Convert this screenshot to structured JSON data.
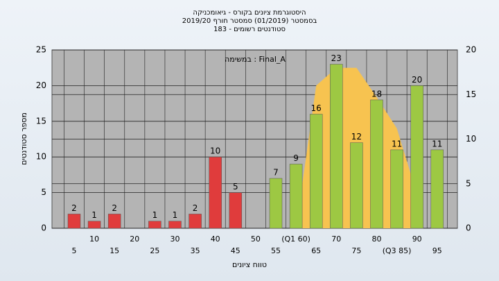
{
  "chart_data": {
    "type": "bar",
    "title": "היסטוגרמת ציונים בקורס - גיאומכניקה",
    "subtitle": "בסמסטר (01/2019) סמסטר חורף 2019/20",
    "subtitle2": "סטודנטים רשומים - 183",
    "annotation": "במשימה : Final_A",
    "ylabel": "מספר סטודנטים",
    "xlabel": "טווח ציונים",
    "categories": [
      "5",
      "10",
      "15",
      "20",
      "25",
      "30",
      "35",
      "40",
      "45",
      "50",
      "55",
      "(Q1 60)",
      "65",
      "70",
      "75",
      "80",
      "(Q3 85)",
      "90",
      "95"
    ],
    "values": [
      2,
      1,
      2,
      0,
      1,
      1,
      2,
      10,
      5,
      0,
      7,
      9,
      16,
      23,
      12,
      18,
      11,
      20,
      11
    ],
    "colors": [
      "#e03c3c",
      "#e03c3c",
      "#e03c3c",
      "#e03c3c",
      "#e03c3c",
      "#e03c3c",
      "#e03c3c",
      "#e03c3c",
      "#e03c3c",
      "#e03c3c",
      "#9dc843",
      "#9dc843",
      "#9dc843",
      "#9dc843",
      "#9dc843",
      "#9dc843",
      "#9dc843",
      "#9dc843",
      "#9dc843"
    ],
    "curve": {
      "axis": "y2",
      "color": "#f7c350",
      "values": [
        null,
        null,
        null,
        null,
        null,
        null,
        null,
        null,
        null,
        null,
        null,
        0,
        16,
        18,
        18,
        14.7,
        11.2,
        3.8,
        null
      ]
    },
    "ylim": [
      0,
      25
    ],
    "yticks": [
      0,
      5,
      10,
      15,
      20,
      25
    ],
    "y2lim": [
      0,
      20
    ],
    "y2ticks": [
      0,
      5,
      10,
      15,
      20
    ],
    "grid": true
  }
}
